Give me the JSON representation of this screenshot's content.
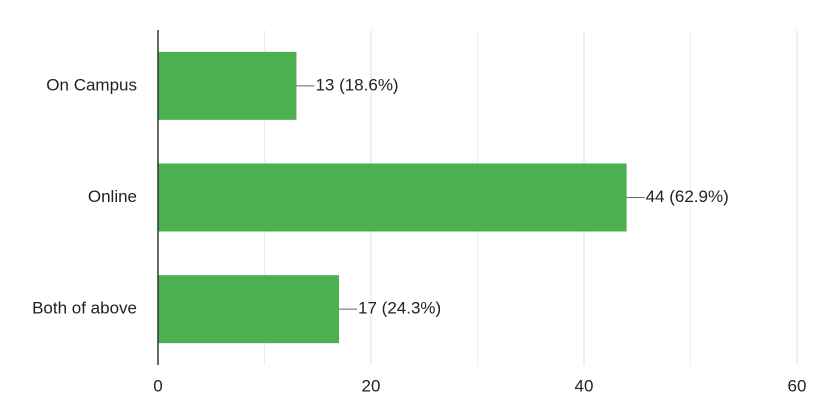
{
  "chart_data": {
    "type": "hbar",
    "categories": [
      "On Campus",
      "Online",
      "Both of above"
    ],
    "values": [
      13,
      44,
      17
    ],
    "value_labels": [
      "13 (18.6%)",
      "44 (62.9%)",
      "17 (24.3%)"
    ],
    "color": "#4caf50",
    "xlim": [
      0,
      60
    ],
    "xticks": [
      0,
      20,
      40,
      60
    ],
    "minor_gridlines": [
      10,
      30,
      50
    ],
    "grid": true
  }
}
